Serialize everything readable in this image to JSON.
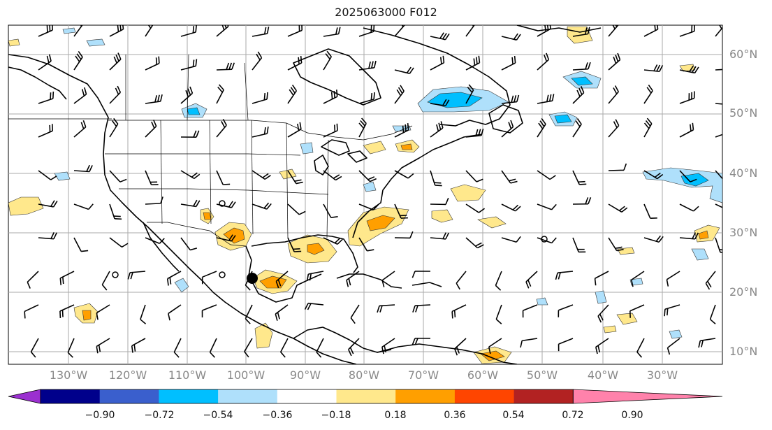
{
  "title": "2025063000 F012",
  "lat_labels": [
    "60°N",
    "50°N",
    "40°N",
    "30°N",
    "20°N",
    "10°N"
  ],
  "lon_labels": [
    "130°W",
    "120°W",
    "110°W",
    "100°W",
    "90°W",
    "80°W",
    "70°W",
    "60°W",
    "50°W",
    "40°W",
    "30°W"
  ],
  "colorbar": {
    "ticks": [
      "−0.90",
      "−0.72",
      "−0.54",
      "−0.36",
      "−0.18",
      "0.18",
      "0.36",
      "0.54",
      "0.72",
      "0.90"
    ],
    "colors": [
      "#9b30d0",
      "#00008b",
      "#3a5fcd",
      "#00bfff",
      "#afe0fb",
      "#ffffff",
      "#ffe88c",
      "#ff9f00",
      "#ff4500",
      "#b22222",
      "#ff82ab"
    ]
  },
  "fill_colors": {
    "light_yellow": "#ffe88c",
    "orange": "#ff9f00",
    "light_blue": "#afe0fb",
    "blue": "#00bfff"
  },
  "marker_colors": {
    "storm_marker": "#000000"
  }
}
